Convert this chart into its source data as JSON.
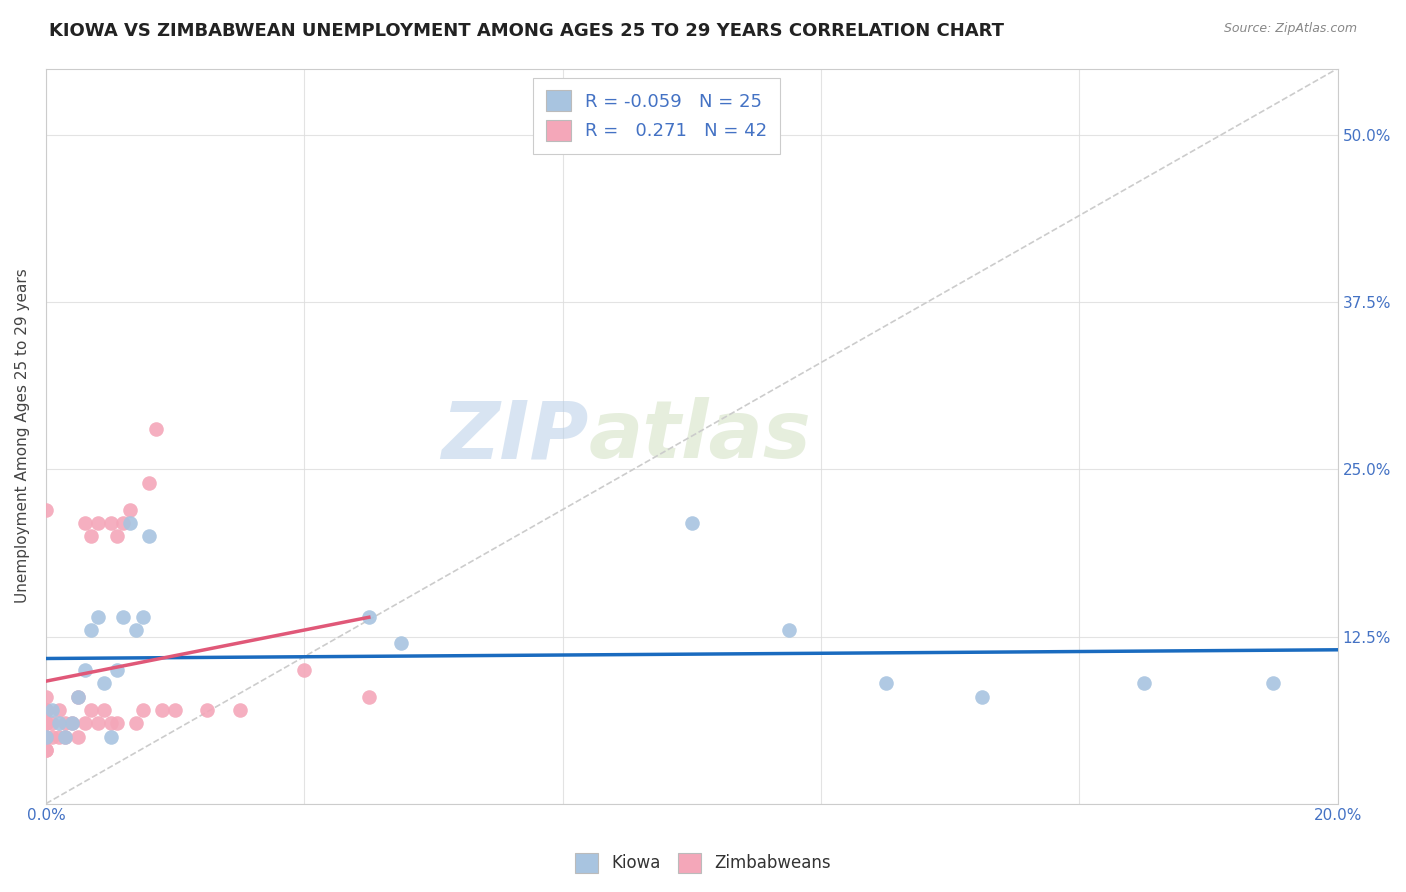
{
  "title": "KIOWA VS ZIMBABWEAN UNEMPLOYMENT AMONG AGES 25 TO 29 YEARS CORRELATION CHART",
  "source": "Source: ZipAtlas.com",
  "ylabel": "Unemployment Among Ages 25 to 29 years",
  "xlim": [
    0.0,
    0.2
  ],
  "ylim": [
    0.0,
    0.55
  ],
  "x_ticks": [
    0.0,
    0.04,
    0.08,
    0.12,
    0.16,
    0.2
  ],
  "y_ticks": [
    0.0,
    0.125,
    0.25,
    0.375,
    0.5
  ],
  "y_tick_labels": [
    "",
    "12.5%",
    "25.0%",
    "37.5%",
    "50.0%"
  ],
  "kiowa_R": -0.059,
  "kiowa_N": 25,
  "zimbabwean_R": 0.271,
  "zimbabwean_N": 42,
  "kiowa_color": "#a8c4e0",
  "zimbabwean_color": "#f4a7b9",
  "kiowa_line_color": "#1a6bbf",
  "zimbabwean_line_color": "#e05878",
  "diagonal_color": "#cccccc",
  "background_color": "#ffffff",
  "watermark_zip": "ZIP",
  "watermark_atlas": "atlas",
  "kiowa_x": [
    0.0,
    0.001,
    0.002,
    0.003,
    0.004,
    0.005,
    0.006,
    0.007,
    0.008,
    0.009,
    0.01,
    0.011,
    0.012,
    0.013,
    0.014,
    0.015,
    0.016,
    0.05,
    0.055,
    0.1,
    0.115,
    0.13,
    0.145,
    0.17,
    0.19
  ],
  "kiowa_y": [
    0.05,
    0.07,
    0.06,
    0.05,
    0.06,
    0.08,
    0.1,
    0.13,
    0.14,
    0.09,
    0.05,
    0.1,
    0.14,
    0.21,
    0.13,
    0.14,
    0.2,
    0.14,
    0.12,
    0.21,
    0.13,
    0.09,
    0.08,
    0.09,
    0.09
  ],
  "zim_x": [
    0.0,
    0.0,
    0.0,
    0.0,
    0.0,
    0.0,
    0.0,
    0.0,
    0.0,
    0.0,
    0.001,
    0.001,
    0.002,
    0.002,
    0.003,
    0.003,
    0.004,
    0.005,
    0.005,
    0.006,
    0.006,
    0.007,
    0.007,
    0.008,
    0.008,
    0.009,
    0.01,
    0.01,
    0.011,
    0.011,
    0.012,
    0.013,
    0.014,
    0.015,
    0.016,
    0.017,
    0.018,
    0.02,
    0.025,
    0.03,
    0.04,
    0.05
  ],
  "zim_y": [
    0.04,
    0.04,
    0.05,
    0.05,
    0.06,
    0.06,
    0.07,
    0.07,
    0.08,
    0.22,
    0.05,
    0.06,
    0.05,
    0.07,
    0.05,
    0.06,
    0.06,
    0.05,
    0.08,
    0.06,
    0.21,
    0.07,
    0.2,
    0.06,
    0.21,
    0.07,
    0.06,
    0.21,
    0.06,
    0.2,
    0.21,
    0.22,
    0.06,
    0.07,
    0.24,
    0.28,
    0.07,
    0.07,
    0.07,
    0.07,
    0.1,
    0.08
  ],
  "title_fontsize": 13,
  "label_fontsize": 11,
  "tick_fontsize": 11,
  "marker_size": 110
}
